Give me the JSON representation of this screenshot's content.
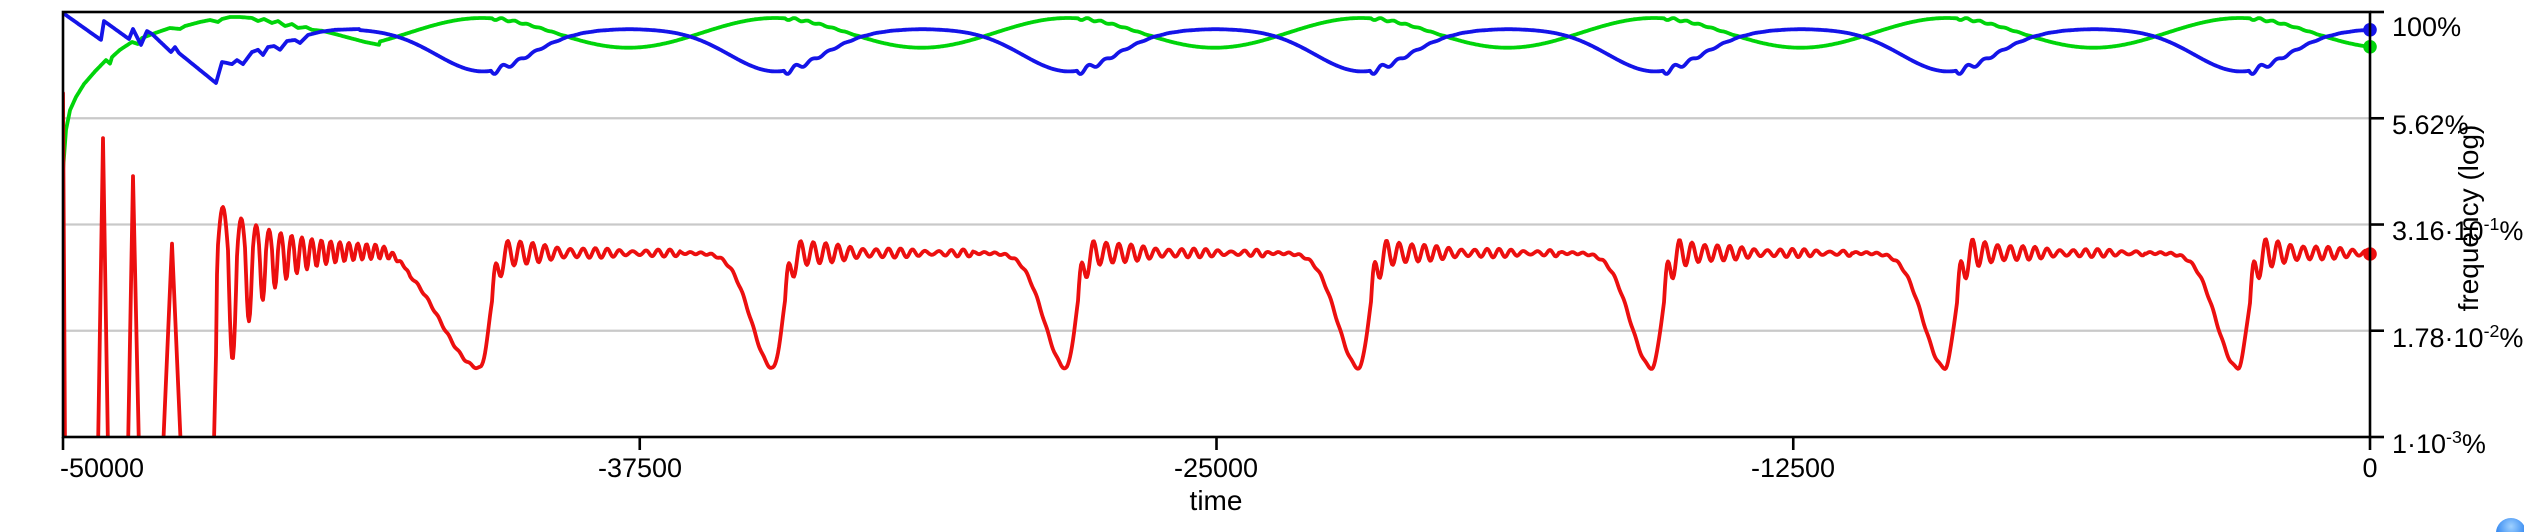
{
  "chart_data": {
    "type": "line",
    "title": "",
    "xlabel": "time",
    "ylabel": "frequency (log)",
    "x_range": [
      -50000,
      0
    ],
    "y_scale": "log",
    "grid": "horizontal",
    "legend": "none",
    "x_ticks": [
      {
        "label": "-50000",
        "value": -50000
      },
      {
        "label": "-37500",
        "value": -37500
      },
      {
        "label": "-25000",
        "value": -25000
      },
      {
        "label": "-12500",
        "value": -12500
      },
      {
        "label": "0",
        "value": 0
      }
    ],
    "y_ticks": [
      {
        "base": "100",
        "exp": "",
        "suffix": "%",
        "value": 100
      },
      {
        "base": "5.62",
        "exp": "",
        "suffix": "%",
        "value": 5.62
      },
      {
        "base": "3.16·10",
        "exp": "-1",
        "suffix": "%",
        "value": 0.316
      },
      {
        "base": "1.78·10",
        "exp": "-2",
        "suffix": "%",
        "value": 0.0178
      },
      {
        "base": "1·10",
        "exp": "-3",
        "suffix": "%",
        "value": 0.001
      }
    ],
    "colors": {
      "axis": "#000000",
      "grid": "#c9c9c9",
      "green": "#00d40a",
      "blue": "#1414e8",
      "red": "#ec0f0f"
    },
    "event_period_time": 6350,
    "event_times": [
      -40962,
      -34612,
      -28262,
      -21911,
      -15561,
      -9211,
      -2861
    ],
    "series": [
      {
        "id": "green",
        "name": "green series",
        "color_key": "green",
        "pattern": "rises steeply from ~1% at start, then smooth sinusoidal oscillation peaking at each event",
        "peak_pct": 85,
        "trough_pct": 38,
        "start_pct": 1.4,
        "end_pct": 37,
        "intro_points": [
          [
            -50000,
            1.38
          ],
          [
            -49935,
            4.1
          ],
          [
            -49848,
            7.0
          ],
          [
            -49718,
            10.0
          ],
          [
            -49545,
            14.2
          ],
          [
            -49306,
            20.0
          ],
          [
            -49068,
            27.2
          ],
          [
            -48981,
            24.7
          ],
          [
            -48938,
            29.5
          ],
          [
            -48765,
            35.9
          ],
          [
            -48505,
            44.4
          ],
          [
            -48375,
            42.0
          ],
          [
            -48288,
            49.4
          ],
          [
            -48006,
            56.5
          ],
          [
            -47681,
            64.9
          ],
          [
            -47464,
            63.1
          ],
          [
            -47356,
            68.4
          ],
          [
            -47031,
            76.3
          ],
          [
            -46814,
            80.5
          ],
          [
            -46641,
            76.3
          ],
          [
            -46554,
            82.7
          ],
          [
            -46381,
            87.3
          ],
          [
            -46164,
            87.3
          ],
          [
            -45904,
            85.0
          ],
          [
            -45774,
            78.3
          ],
          [
            -45644,
            82.7
          ],
          [
            -45470,
            74.3
          ],
          [
            -45340,
            78.3
          ],
          [
            -45188,
            68.4
          ],
          [
            -45037,
            72.2
          ],
          [
            -44907,
            64.9
          ],
          [
            -44733,
            66.6
          ],
          [
            -44603,
            61.7
          ],
          [
            -44387,
            60.1
          ],
          [
            -44105,
            55.1
          ],
          [
            -43780,
            49.4
          ],
          [
            -43455,
            44.4
          ],
          [
            -43129,
            40.9
          ]
        ]
      },
      {
        "id": "blue",
        "name": "blue series",
        "color_key": "blue",
        "pattern": "starts near 100%, sawtooth decline during transient, then rounded plateau with sharp V dips at each event",
        "max_pct": 66,
        "dip_pct": 20,
        "start_pct": 97,
        "end_pct": 67,
        "intro_points": [
          [
            -50000,
            97.3
          ],
          [
            -49177,
            46.9
          ],
          [
            -49112,
            78.3
          ],
          [
            -48570,
            48.1
          ],
          [
            -48483,
            63.1
          ],
          [
            -48310,
            40.9
          ],
          [
            -48180,
            59.7
          ],
          [
            -48071,
            55.1
          ],
          [
            -47659,
            33.8
          ],
          [
            -47573,
            38.7
          ],
          [
            -47486,
            32.9
          ],
          [
            -46684,
            14.6
          ],
          [
            -46554,
            25.8
          ],
          [
            -46337,
            24.4
          ],
          [
            -46229,
            27.2
          ],
          [
            -46099,
            24.4
          ],
          [
            -45904,
            33.8
          ],
          [
            -45774,
            35.9
          ],
          [
            -45665,
            31.2
          ],
          [
            -45557,
            38.7
          ],
          [
            -45427,
            39.8
          ],
          [
            -45297,
            35.9
          ],
          [
            -45145,
            45.6
          ],
          [
            -44972,
            46.9
          ],
          [
            -44863,
            43.2
          ],
          [
            -44690,
            53.7
          ],
          [
            -44430,
            58.3
          ],
          [
            -44105,
            61.7
          ],
          [
            -43563,
            63.1
          ]
        ]
      },
      {
        "id": "red",
        "name": "red series",
        "color_key": "red",
        "pattern": "large off-scale spikes then damped chirp settling to ~0.14% plateau; deep dip to ~0.007% at each event followed by damped ripples",
        "plateau_pct": 0.146,
        "dip_pct": 0.0065,
        "start_pct": 11.1,
        "end_pct": 0.14,
        "spike_tops": [
          {
            "t": -49989,
            "pct": 11.1
          },
          {
            "t": -49133,
            "pct": 3.3
          },
          {
            "t": -48483,
            "pct": 1.18
          },
          {
            "t": -47638,
            "pct": 0.19
          },
          {
            "t": -46532,
            "pct": 0.43
          }
        ],
        "intro_points": [
          [
            -49989,
            11.1
          ],
          [
            -49967,
            0.0007
          ],
          [
            -49241,
            0.0007
          ],
          [
            -49133,
            3.3
          ],
          [
            -49024,
            0.0007
          ],
          [
            -48591,
            0.0007
          ],
          [
            -48483,
            1.18
          ],
          [
            -48353,
            0.0007
          ],
          [
            -47833,
            0.0007
          ],
          [
            -47638,
            0.19
          ],
          [
            -47443,
            0.0007
          ],
          [
            -46857,
            0.0007
          ],
          [
            -46727,
            0.0009
          ],
          [
            -46662,
            0.03
          ]
        ],
        "transient_chirp": {
          "start_time": -46640,
          "peak_time": -46532,
          "description": "oscillation with shrinking period (~450 to ~190 time units) and decaying amplitude merging into plateau"
        }
      }
    ],
    "end_markers": true
  },
  "corner_widget": {
    "name": "floating blue button",
    "color": "#3b8df2"
  }
}
